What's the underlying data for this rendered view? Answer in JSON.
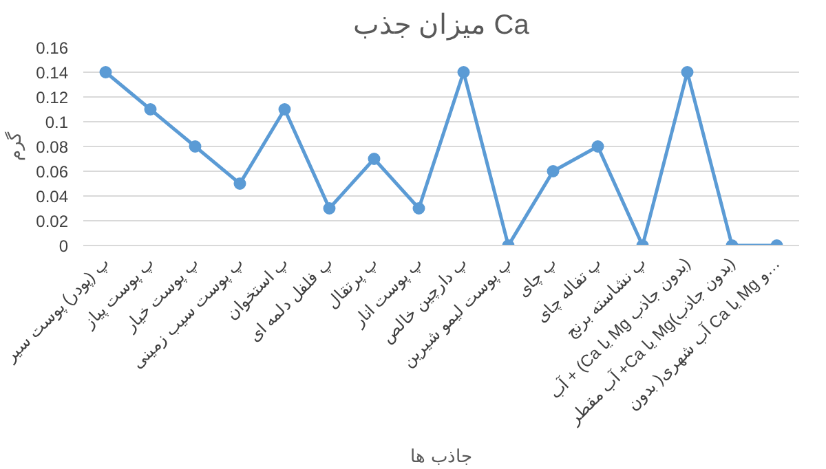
{
  "chart_data": {
    "type": "line",
    "title": "میزان جذب Ca",
    "xlabel": "جاذب ها",
    "ylabel": "گرم",
    "categories": [
      "پ (پودر) پوست سیر",
      "پ پوست پیاز",
      "پ پوست خیار",
      "پ پوست سیب زمینی",
      "پ استخوان",
      "پ فلفل دلمه ای",
      "پ پرتقال",
      "پ پوست انار",
      "پ دارچین خالص",
      "پ پوست لیمو شیرین",
      "پ چای",
      "پ تفاله چای",
      "پ نشاسته برنج",
      "آب + (Ca یا Mg بدون جاذب)",
      "آب مقطر +Ca یا Mg(بدون جاذب)",
      "آب شهری( بدون Ca یا Mg و…"
    ],
    "series": [
      {
        "color": "#5b9bd5",
        "values": [
          0.14,
          0.11,
          0.08,
          0.05,
          0.11,
          0.03,
          0.07,
          0.03,
          0.14,
          0,
          0.06,
          0.08,
          0,
          0.14,
          0,
          0
        ]
      }
    ],
    "ylim": [
      0,
      0.16
    ],
    "yticks": [
      0,
      0.02,
      0.04,
      0.06,
      0.08,
      0.1,
      0.12,
      0.14,
      0.16
    ],
    "grid": "y",
    "marker": "circle",
    "line_style": "solid"
  }
}
